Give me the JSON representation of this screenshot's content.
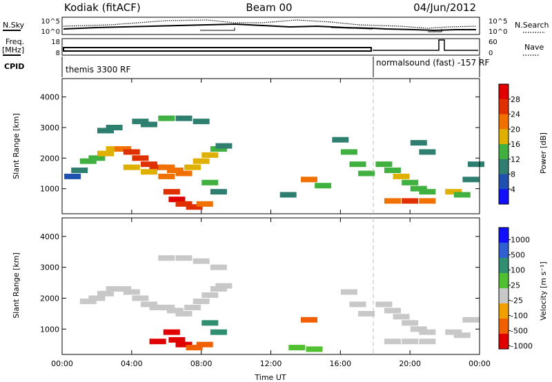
{
  "header": {
    "station": "Kodiak (fitACF)",
    "beam": "Beam 00",
    "date": "04/Jun/2012"
  },
  "summary": {
    "nsky_label": "N.Sky",
    "nsky_ticks": [
      "10^5",
      "10^0"
    ],
    "nsearch_label": "N.Search",
    "nsearch_ticks": [
      "10^5",
      "10^0"
    ],
    "freq_label": "Freq.",
    "freq_unit": "[MHz]",
    "freq_ticks": [
      "18",
      "8"
    ],
    "nave_label": "Nave",
    "nave_ticks": [
      "60",
      "0"
    ],
    "cpid_label": "CPID",
    "cpid_segments": [
      {
        "name": "themis 3300 RF",
        "start": 0,
        "end": 18
      },
      {
        "name": "normalsound (fast) -157 RF",
        "start": 18,
        "end": 24
      }
    ]
  },
  "chart_data": [
    {
      "type": "heatmap",
      "panel": "power",
      "title": "",
      "xlabel": "Time UT",
      "ylabel": "Slant Range [km]",
      "xlim": [
        0,
        24
      ],
      "ylim": [
        180,
        4600
      ],
      "x_ticks": [
        "00:00",
        "04:00",
        "08:00",
        "12:00",
        "16:00",
        "20:00",
        "00:00"
      ],
      "y_ticks": [
        "1000",
        "2000",
        "3000",
        "4000"
      ],
      "colorbar_label": "Power [dB]",
      "colorbar_ticks": [
        "4",
        "8",
        "12",
        "16",
        "20",
        "24",
        "28"
      ],
      "colorbar_range": [
        0,
        30
      ],
      "colorbar_colors": [
        "#1010ff",
        "#2050b0",
        "#2f7f70",
        "#40b040",
        "#e0b000",
        "#f07000",
        "#e03000",
        "#e00000"
      ],
      "cells": [
        [
          0.6,
          1400,
          5
        ],
        [
          1.0,
          1600,
          8
        ],
        [
          1.5,
          1900,
          12
        ],
        [
          2.0,
          2000,
          14
        ],
        [
          2.5,
          2150,
          16
        ],
        [
          3.0,
          2300,
          18
        ],
        [
          3.5,
          2300,
          20
        ],
        [
          4.0,
          2200,
          24
        ],
        [
          4.5,
          2000,
          26
        ],
        [
          5.0,
          1800,
          24
        ],
        [
          5.5,
          1700,
          24
        ],
        [
          6.0,
          1700,
          22
        ],
        [
          6.5,
          1600,
          22
        ],
        [
          7.0,
          1500,
          20
        ],
        [
          7.5,
          1700,
          18
        ],
        [
          8.0,
          1900,
          18
        ],
        [
          8.5,
          2100,
          16
        ],
        [
          9.0,
          2300,
          14
        ],
        [
          9.3,
          2400,
          10
        ],
        [
          2.5,
          2900,
          8
        ],
        [
          3.0,
          3000,
          10
        ],
        [
          4.5,
          3200,
          8
        ],
        [
          5.0,
          3100,
          10
        ],
        [
          6.0,
          3300,
          12
        ],
        [
          7.0,
          3300,
          10
        ],
        [
          8.0,
          3200,
          8
        ],
        [
          4.0,
          1700,
          16
        ],
        [
          5.0,
          1550,
          18
        ],
        [
          6.0,
          1400,
          20
        ],
        [
          6.3,
          900,
          26
        ],
        [
          6.6,
          650,
          28
        ],
        [
          7.0,
          500,
          24
        ],
        [
          7.6,
          400,
          26
        ],
        [
          8.2,
          500,
          22
        ],
        [
          8.5,
          1200,
          12
        ],
        [
          9.0,
          900,
          10
        ],
        [
          13.0,
          800,
          10
        ],
        [
          14.2,
          1300,
          20
        ],
        [
          15.0,
          1100,
          12
        ],
        [
          16.0,
          2600,
          10
        ],
        [
          16.5,
          2200,
          12
        ],
        [
          17.0,
          1800,
          14
        ],
        [
          17.5,
          1500,
          12
        ],
        [
          18.5,
          1800,
          12
        ],
        [
          19.0,
          1600,
          14
        ],
        [
          19.5,
          1400,
          16
        ],
        [
          20.0,
          1200,
          12
        ],
        [
          20.5,
          1000,
          14
        ],
        [
          21.0,
          900,
          12
        ],
        [
          19.0,
          600,
          22
        ],
        [
          20.0,
          600,
          24
        ],
        [
          21.0,
          600,
          22
        ],
        [
          22.5,
          900,
          16
        ],
        [
          23.0,
          800,
          14
        ],
        [
          23.5,
          1300,
          10
        ],
        [
          23.8,
          1800,
          8
        ],
        [
          20.5,
          2500,
          8
        ],
        [
          21.0,
          2200,
          10
        ]
      ]
    },
    {
      "type": "heatmap",
      "panel": "velocity",
      "title": "",
      "xlabel": "Time UT",
      "ylabel": "Slant Range [km]",
      "xlim": [
        0,
        24
      ],
      "ylim": [
        180,
        4600
      ],
      "x_ticks": [
        "00:00",
        "04:00",
        "08:00",
        "12:00",
        "16:00",
        "20:00",
        "00:00"
      ],
      "y_ticks": [
        "1000",
        "2000",
        "3000",
        "4000"
      ],
      "colorbar_label": "Velocity [m s⁻¹]",
      "colorbar_ticks": [
        "1000",
        "500",
        "100",
        "25",
        "-25",
        "-100",
        "-500",
        "-1000"
      ],
      "colorbar_colors": [
        "#1010ff",
        "#2f5fd0",
        "#2f8f70",
        "#50c030",
        "#c8c8c8",
        "#f0a000",
        "#f06000",
        "#e00000"
      ],
      "cells": [
        [
          1.5,
          1900,
          0
        ],
        [
          2.0,
          2000,
          0
        ],
        [
          2.5,
          2150,
          0
        ],
        [
          3.0,
          2300,
          0
        ],
        [
          3.5,
          2300,
          0
        ],
        [
          4.0,
          2200,
          0
        ],
        [
          4.5,
          2000,
          0
        ],
        [
          5.0,
          1800,
          0
        ],
        [
          5.5,
          1700,
          0
        ],
        [
          6.0,
          1700,
          0
        ],
        [
          6.5,
          1600,
          0
        ],
        [
          7.0,
          1500,
          0
        ],
        [
          7.5,
          1700,
          0
        ],
        [
          8.0,
          1900,
          0
        ],
        [
          8.5,
          2100,
          0
        ],
        [
          9.0,
          2300,
          0
        ],
        [
          9.3,
          2400,
          0
        ],
        [
          6.0,
          3300,
          0
        ],
        [
          7.0,
          3300,
          0
        ],
        [
          8.0,
          3200,
          0
        ],
        [
          9.0,
          3000,
          0
        ],
        [
          6.3,
          900,
          -300
        ],
        [
          6.6,
          650,
          -400
        ],
        [
          7.0,
          500,
          -350
        ],
        [
          7.6,
          400,
          -200
        ],
        [
          8.2,
          500,
          -150
        ],
        [
          5.5,
          600,
          -350
        ],
        [
          8.5,
          1200,
          150
        ],
        [
          9.0,
          900,
          200
        ],
        [
          14.2,
          1300,
          -150
        ],
        [
          13.5,
          400,
          60
        ],
        [
          14.5,
          350,
          60
        ],
        [
          16.5,
          2200,
          0
        ],
        [
          17.0,
          1800,
          0
        ],
        [
          17.5,
          1500,
          0
        ],
        [
          18.5,
          1800,
          0
        ],
        [
          19.0,
          1600,
          0
        ],
        [
          19.5,
          1400,
          0
        ],
        [
          20.0,
          1200,
          0
        ],
        [
          20.5,
          1000,
          0
        ],
        [
          21.0,
          900,
          0
        ],
        [
          19.0,
          600,
          0
        ],
        [
          20.0,
          600,
          0
        ],
        [
          21.0,
          600,
          0
        ],
        [
          22.5,
          900,
          0
        ],
        [
          23.0,
          800,
          0
        ],
        [
          23.5,
          1300,
          0
        ]
      ]
    }
  ]
}
